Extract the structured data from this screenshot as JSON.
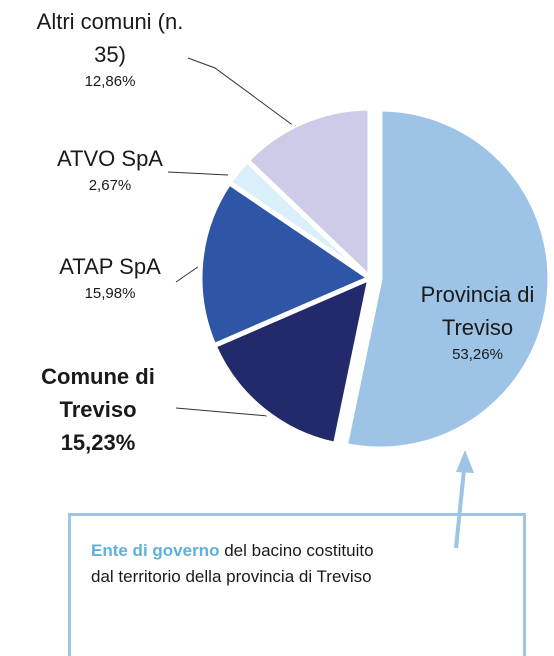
{
  "chart_data": {
    "type": "pie",
    "categories": [
      "Provincia di Treviso",
      "Comune di Treviso",
      "ATAP SpA",
      "ATVO SpA",
      "Altri comuni (n. 35)"
    ],
    "values": [
      53.26,
      15.23,
      15.98,
      2.67,
      12.86
    ],
    "value_labels": [
      "53,26%",
      "15,23%",
      "15,98%",
      "2,67%",
      "12,86%"
    ],
    "colors": [
      "#9dc3e6",
      "#232a6b",
      "#2e55a6",
      "#d9effa",
      "#cccce8"
    ],
    "annotation": {
      "highlight": "Ente di governo",
      "text": "del bacino costituito dal territorio della provincia di Treviso"
    }
  }
}
